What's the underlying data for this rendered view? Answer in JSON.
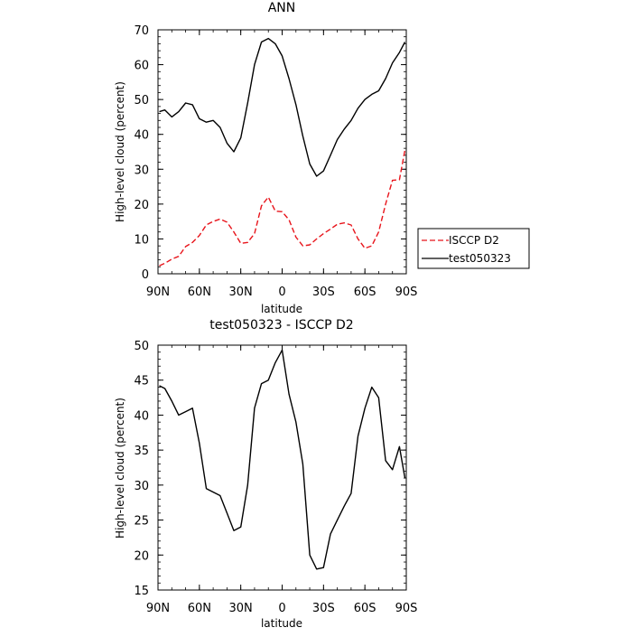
{
  "colors": {
    "obs": "#e8141b",
    "model": "#000000"
  },
  "legend": {
    "position": "right-middle",
    "items": [
      "ISCCP D2",
      "test050323"
    ]
  },
  "chart_data": [
    {
      "type": "line",
      "title": "ANN",
      "xlabel": "latitude",
      "ylabel": "High-level cloud (percent)",
      "xlim": [
        90,
        -90
      ],
      "ylim": [
        0,
        70
      ],
      "xticks": [
        90,
        60,
        30,
        0,
        -30,
        -60,
        -90
      ],
      "xtick_labels": [
        "90N",
        "60N",
        "30N",
        "0",
        "30S",
        "60S",
        "90S"
      ],
      "yticks": [
        0,
        10,
        20,
        30,
        40,
        50,
        60,
        70
      ],
      "ytick_labels": [
        "0",
        "10",
        "20",
        "30",
        "40",
        "50",
        "60",
        "70"
      ],
      "series": [
        {
          "name": "ISCCP D2",
          "style": "dashed",
          "color": "#e8141b",
          "x": [
            89,
            85,
            80,
            75,
            70,
            65,
            60,
            55,
            50,
            45,
            40,
            35,
            30,
            25,
            20,
            15,
            10,
            5,
            0,
            -5,
            -10,
            -15,
            -20,
            -25,
            -30,
            -35,
            -40,
            -45,
            -50,
            -55,
            -60,
            -65,
            -70,
            -75,
            -80,
            -85,
            -89
          ],
          "values": [
            2.3,
            3.0,
            4.2,
            5.0,
            7.8,
            9.0,
            11.0,
            14.0,
            15.0,
            15.7,
            14.8,
            12.0,
            8.7,
            9.0,
            11.5,
            19.5,
            22.0,
            18.0,
            17.8,
            15.5,
            10.5,
            8.0,
            8.3,
            10.0,
            11.5,
            12.8,
            14.2,
            14.6,
            14.0,
            10.0,
            7.3,
            8.0,
            12.0,
            20.0,
            26.8,
            27.0,
            35.5
          ]
        },
        {
          "name": "test050323",
          "style": "solid",
          "color": "#000000",
          "x": [
            89,
            85,
            80,
            75,
            70,
            65,
            60,
            55,
            50,
            45,
            40,
            35,
            30,
            25,
            20,
            15,
            10,
            5,
            0,
            -5,
            -10,
            -15,
            -20,
            -25,
            -30,
            -35,
            -40,
            -45,
            -50,
            -55,
            -60,
            -65,
            -70,
            -75,
            -80,
            -85,
            -89
          ],
          "values": [
            46.5,
            47.0,
            45.0,
            46.5,
            49.0,
            48.5,
            44.5,
            43.5,
            44.0,
            42.0,
            37.5,
            35.0,
            39.0,
            49.0,
            60.0,
            66.5,
            67.5,
            66.0,
            62.5,
            56.0,
            48.5,
            39.5,
            31.5,
            28.0,
            29.5,
            34.0,
            38.5,
            41.5,
            44.0,
            47.5,
            50.0,
            51.5,
            52.5,
            56.0,
            60.5,
            63.5,
            66.5
          ]
        }
      ]
    },
    {
      "type": "line",
      "title": "test050323 - ISCCP D2",
      "xlabel": "latitude",
      "ylabel": "High-level cloud (percent)",
      "xlim": [
        90,
        -90
      ],
      "ylim": [
        15,
        50
      ],
      "xticks": [
        90,
        60,
        30,
        0,
        -30,
        -60,
        -90
      ],
      "xtick_labels": [
        "90N",
        "60N",
        "30N",
        "0",
        "30S",
        "60S",
        "90S"
      ],
      "yticks": [
        15,
        20,
        25,
        30,
        35,
        40,
        45,
        50
      ],
      "ytick_labels": [
        "15",
        "20",
        "25",
        "30",
        "35",
        "40",
        "45",
        "50"
      ],
      "series": [
        {
          "name": "test050323 - ISCCP D2",
          "style": "solid",
          "color": "#000000",
          "x": [
            89,
            85,
            80,
            75,
            70,
            65,
            60,
            55,
            50,
            45,
            40,
            35,
            30,
            25,
            20,
            15,
            10,
            5,
            0,
            -5,
            -10,
            -15,
            -20,
            -25,
            -30,
            -35,
            -40,
            -45,
            -50,
            -55,
            -60,
            -65,
            -70,
            -75,
            -80,
            -85,
            -89
          ],
          "values": [
            44.2,
            43.8,
            42.0,
            40.0,
            40.5,
            41.0,
            36.0,
            29.5,
            29.0,
            28.5,
            26.0,
            23.5,
            24.0,
            30.0,
            41.0,
            44.5,
            45.0,
            47.5,
            49.3,
            43.0,
            39.0,
            33.0,
            20.0,
            18.0,
            18.2,
            23.0,
            25.0,
            27.0,
            28.8,
            37.0,
            41.0,
            44.0,
            42.5,
            33.5,
            32.2,
            35.5,
            31.0
          ]
        }
      ]
    }
  ]
}
